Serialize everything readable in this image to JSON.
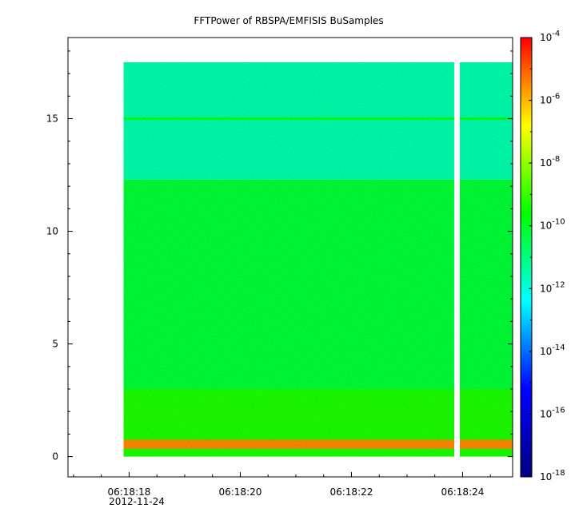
{
  "chart_data": {
    "type": "heatmap",
    "title": "FFTPower of RBSPA/EMFISIS  BuSamples",
    "xlabel": "",
    "ylabel": "",
    "x_tick_labels": [
      "06:18:18",
      "06:18:20",
      "06:18:22",
      "06:18:24"
    ],
    "x_date_label": "2012-11-24",
    "x_range": [
      "06:18:16.9",
      "06:18:24.9"
    ],
    "data_x_range": [
      "06:18:17.9",
      "06:18:24.9"
    ],
    "data_gap": [
      "06:18:23.85",
      "06:18:23.95"
    ],
    "y_ticks": [
      0,
      5,
      10,
      15
    ],
    "ylim": [
      -0.9,
      18.6
    ],
    "data_y_range": [
      0,
      17.5
    ],
    "colorbar": {
      "scale": "log",
      "range": [
        1e-18,
        0.0001
      ],
      "tick_exponents": [
        -4,
        -6,
        -8,
        -10,
        -12,
        -14,
        -16,
        -18
      ],
      "colors": [
        "#00007f",
        "#0000ff",
        "#00ffff",
        "#00ff00",
        "#ffff00",
        "#ff0000"
      ]
    },
    "bands": [
      {
        "y": [
          12.3,
          17.5
        ],
        "level": -11.5
      },
      {
        "y": [
          3.0,
          12.3
        ],
        "level": -10.2
      },
      {
        "y": [
          0,
          3.0
        ],
        "level": -9.3
      },
      {
        "y": [
          0.35,
          0.75
        ],
        "level": -5.5
      },
      {
        "y": [
          14.95,
          15.05
        ],
        "level": -9.8
      }
    ],
    "grid": false,
    "legend": "none"
  }
}
